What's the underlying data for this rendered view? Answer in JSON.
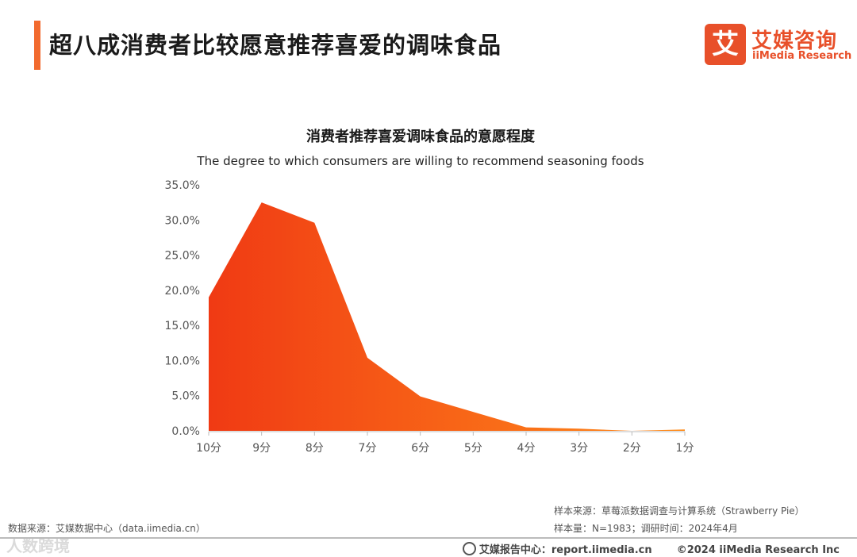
{
  "header": {
    "title": "超八成消费者比较愿意推荐喜爱的调味食品",
    "logo_mark": "艾",
    "logo_cn": "艾媒咨询",
    "logo_en": "iiMedia Research"
  },
  "colors": {
    "accent": "#f26a2e",
    "gradient_start": "#f03a14",
    "gradient_end": "#ff8c1a"
  },
  "chart_data": {
    "type": "area",
    "title": "消费者推荐喜爱调味食品的意愿程度",
    "subtitle": "The degree to which consumers are willing to recommend seasoning foods",
    "categories": [
      "10分",
      "9分",
      "8分",
      "7分",
      "6分",
      "5分",
      "4分",
      "3分",
      "2分",
      "1分"
    ],
    "values": [
      19.0,
      32.5,
      29.6,
      10.4,
      4.9,
      2.7,
      0.5,
      0.3,
      0.0,
      0.2
    ],
    "y_ticks": [
      "35.0%",
      "30.0%",
      "25.0%",
      "20.0%",
      "15.0%",
      "10.0%",
      "5.0%",
      "0.0%"
    ],
    "ylim": [
      0,
      35
    ],
    "grid": false
  },
  "footer": {
    "source_left": "数据来源：艾媒数据中心（data.iimedia.cn）",
    "sample_source": "样本来源：草莓派数据调查与计算系统（Strawberry Pie）",
    "sample_size": "样本量：N=1983；调研时间：2024年4月",
    "report_center": "艾媒报告中心：report.iimedia.cn",
    "copyright": "©2024  iiMedia Research Inc",
    "watermark": "人数跨境"
  }
}
